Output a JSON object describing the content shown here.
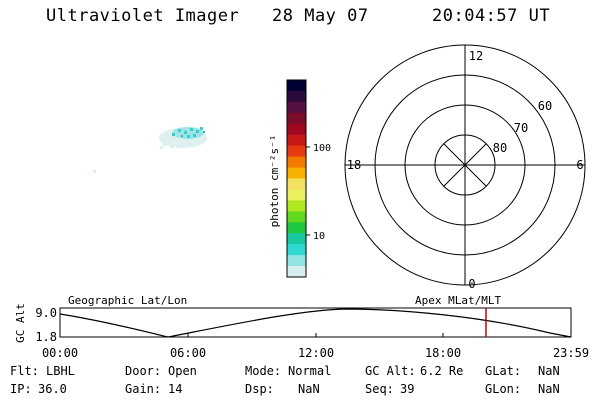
{
  "header": {
    "title": "Ultraviolet Imager",
    "date": "28 May 07",
    "time": "20:04:57 UT"
  },
  "colorbar": {
    "unit_label": "photon cm⁻²s⁻¹",
    "ticks": [
      "100",
      "10"
    ],
    "colors": [
      "#000033",
      "#2a0a3a",
      "#55103f",
      "#7a0e2a",
      "#a00820",
      "#c81818",
      "#e83a10",
      "#f27a00",
      "#f6b000",
      "#f4e060",
      "#e8f060",
      "#b0e820",
      "#60d820",
      "#20c840",
      "#18c8a0",
      "#30d8d0",
      "#90e4e4",
      "#d8eeee"
    ]
  },
  "polar": {
    "mlt_labels": [
      "12",
      "18",
      "6",
      "0"
    ],
    "lat_labels": [
      "60",
      "70",
      "80"
    ]
  },
  "orbit": {
    "left_label": "Geographic Lat/Lon",
    "right_label": "Apex MLat/MLT",
    "y_axis_title": "GC Alt",
    "y_ticks": [
      "9.0",
      "1.8"
    ],
    "x_ticks": [
      "00:00",
      "06:00",
      "12:00",
      "18:00",
      "23:59"
    ],
    "marker_color": "#cc0000"
  },
  "info": {
    "flt_label": "Flt:",
    "flt_value": "LBHL",
    "door_label": "Door:",
    "door_value": "Open",
    "mode_label": "Mode:",
    "mode_value": "Normal",
    "gcalt_label": "GC Alt:",
    "gcalt_value": "6.2 Re",
    "glat_label": "GLat:",
    "glat_value": "NaN",
    "ip_label": "IP:",
    "ip_value": "36.0",
    "gain_label": "Gain:",
    "gain_value": "14",
    "dsp_label": "Dsp:",
    "dsp_value": "NaN",
    "seq_label": "Seq:",
    "seq_value": "39",
    "glon_label": "GLon:",
    "glon_value": "NaN"
  }
}
